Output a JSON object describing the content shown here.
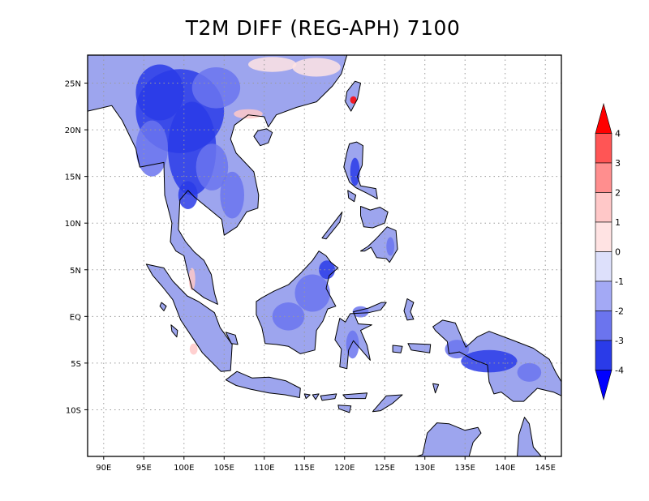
{
  "title": "T2M DIFF (REG-APH) 7100",
  "map": {
    "lon_range": [
      88,
      147
    ],
    "lat_range": [
      -15,
      28
    ],
    "lon_ticks": [
      "90E",
      "95E",
      "100E",
      "105E",
      "110E",
      "115E",
      "120E",
      "125E",
      "130E",
      "135E",
      "140E",
      "145E"
    ],
    "lat_ticks": [
      "25N",
      "20N",
      "15N",
      "10N",
      "5N",
      "EQ",
      "5S",
      "10S"
    ],
    "grid": true,
    "land_base_color": "#9da5ee"
  },
  "colorbar": {
    "labels": [
      "4",
      "3",
      "2",
      "1",
      "0",
      "-1",
      "-2",
      "-3",
      "-4"
    ],
    "colors": [
      "#ff0000",
      "#ff5555",
      "#ff8e8e",
      "#ffc8c8",
      "#ffe3e3",
      "#dde0fb",
      "#a3a9f5",
      "#6b74ee",
      "#2a3be8",
      "#0000ff"
    ],
    "orientation": "vertical",
    "placement": "right"
  }
}
